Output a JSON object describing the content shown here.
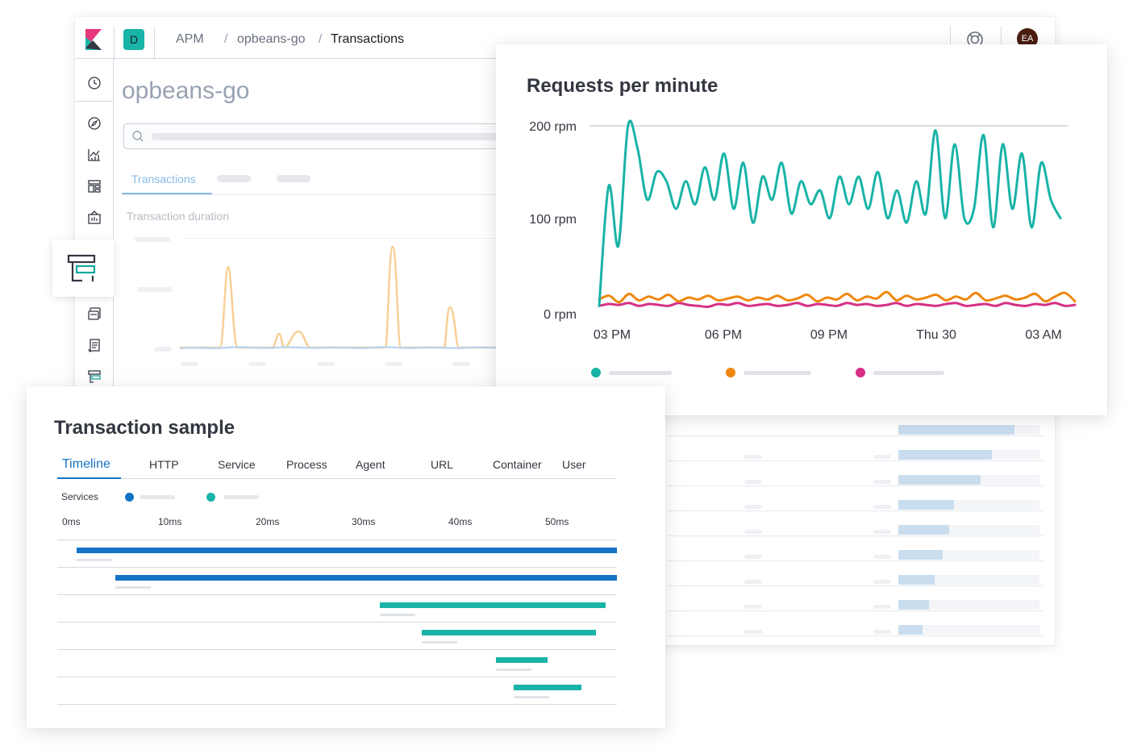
{
  "header": {
    "app_initial": "D",
    "breadcrumbs": [
      "APM",
      "opbeans-go",
      "Transactions"
    ],
    "separator": "/",
    "user_initials": "EA"
  },
  "main": {
    "service_title": "opbeans-go",
    "tabs": [
      "Transactions"
    ],
    "chart_title": "Transaction duration"
  },
  "rpm": {
    "title": "Requests per minute",
    "colors": [
      "#19b3a7",
      "#f0870f",
      "#d63084"
    ]
  },
  "sample": {
    "title": "Transaction sample",
    "tabs": [
      "Timeline",
      "HTTP",
      "Service",
      "Process",
      "Agent",
      "URL",
      "Container",
      "User"
    ],
    "services_label": "Services",
    "service_colors": [
      "#1573c6",
      "#19b3a7"
    ]
  },
  "chart_data": {
    "type": "line",
    "title": "Requests per minute",
    "x_ticks": [
      "03 PM",
      "06 PM",
      "09 PM",
      "Thu 30",
      "03 AM"
    ],
    "y_ticks": [
      "0 rpm",
      "100 rpm",
      "200 rpm"
    ],
    "ylim": [
      0,
      200
    ],
    "grid": "top line only",
    "legend": "bottom",
    "series": [
      {
        "color": "#19b3a7",
        "values": [
          5,
          135,
          70,
          200,
          175,
          120,
          150,
          140,
          110,
          140,
          115,
          155,
          120,
          170,
          110,
          160,
          95,
          145,
          120,
          160,
          105,
          140,
          115,
          130,
          100,
          145,
          115,
          145,
          110,
          150,
          100,
          130,
          95,
          140,
          105,
          195,
          100,
          180,
          100,
          110,
          190,
          90,
          180,
          110,
          170,
          90,
          160,
          120,
          100
        ]
      },
      {
        "color": "#f0870f",
        "values": [
          12,
          16,
          9,
          18,
          11,
          15,
          12,
          17,
          10,
          14,
          12,
          16,
          11,
          13,
          15,
          11,
          14,
          12,
          16,
          11,
          13,
          17,
          10,
          14,
          12,
          18,
          11,
          15,
          13,
          20,
          11,
          16,
          12,
          14,
          17,
          11,
          15,
          12,
          19,
          11,
          13,
          16,
          12,
          14,
          18,
          10,
          15,
          19,
          10
        ]
      },
      {
        "color": "#d63084",
        "values": [
          5,
          7,
          6,
          8,
          5,
          7,
          6,
          5,
          8,
          6,
          5,
          4,
          7,
          6,
          8,
          5,
          6,
          7,
          5,
          6,
          8,
          5,
          7,
          6,
          5,
          8,
          6,
          7,
          5,
          6,
          8,
          5,
          7,
          6,
          5,
          7,
          8,
          5,
          6,
          7,
          5,
          8,
          6,
          5,
          7,
          6,
          8,
          5,
          6
        ]
      }
    ]
  }
}
